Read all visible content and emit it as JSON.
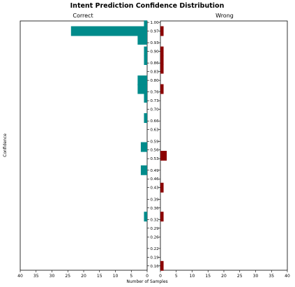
{
  "chart_data": {
    "type": "bar",
    "orientation": "horizontal",
    "title": "Intent Prediction Confidence Distribution",
    "xlabel": "Number of Samples",
    "ylabel": "Confidence",
    "panels": [
      "Correct",
      "Wrong"
    ],
    "xlim": [
      0,
      40
    ],
    "x_ticks": [
      40,
      35,
      30,
      25,
      20,
      15,
      10,
      5,
      0
    ],
    "x_tick_labels": [
      "40",
      "35",
      "30",
      "25",
      "20",
      "15",
      "10",
      "5",
      "0"
    ],
    "y_ticks": [
      1.0,
      0.97,
      0.93,
      0.9,
      0.86,
      0.83,
      0.8,
      0.76,
      0.73,
      0.7,
      0.66,
      0.63,
      0.59,
      0.56,
      0.53,
      0.49,
      0.46,
      0.43,
      0.39,
      0.36,
      0.32,
      0.29,
      0.26,
      0.22,
      0.19,
      0.16
    ],
    "y_tick_labels": [
      "1.00",
      "0.97",
      "0.93",
      "0.90",
      "0.86",
      "0.83",
      "0.80",
      "0.76",
      "0.73",
      "0.70",
      "0.66",
      "0.63",
      "0.59",
      "0.56",
      "0.53",
      "0.49",
      "0.46",
      "0.43",
      "0.39",
      "0.36",
      "0.32",
      "0.29",
      "0.26",
      "0.22",
      "0.19",
      "0.16"
    ],
    "bin_width": 0.0336,
    "series": [
      {
        "name": "Correct",
        "color": "#008b8b",
        "bins": [
          0.99,
          0.97,
          0.94,
          0.9,
          0.87,
          0.8,
          0.77,
          0.74,
          0.67,
          0.57,
          0.49,
          0.33
        ],
        "values": [
          1,
          24,
          3,
          1,
          1,
          3,
          3,
          1,
          1,
          2,
          2,
          1
        ]
      },
      {
        "name": "Wrong",
        "color": "#8b0000",
        "bins": [
          0.97,
          0.9,
          0.87,
          0.84,
          0.77,
          0.54,
          0.43,
          0.33,
          0.16
        ],
        "values": [
          1,
          1,
          1,
          1,
          1,
          2,
          1,
          1,
          1
        ]
      }
    ]
  }
}
